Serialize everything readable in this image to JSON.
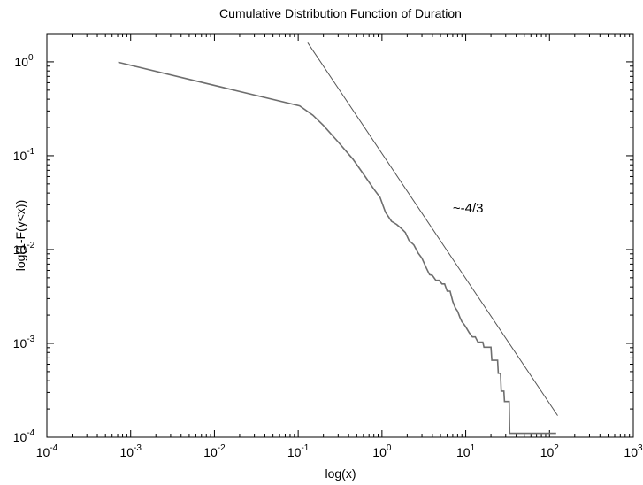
{
  "chart_data": {
    "type": "line",
    "title": "Cumulative Distribution Function of  Duration",
    "xlabel": "log(x)",
    "ylabel": "log(1-F(y<x))",
    "x_scale": "log",
    "y_scale": "log",
    "xlim": [
      0.0001,
      1000
    ],
    "ylim": [
      0.0001,
      2
    ],
    "grid": false,
    "x_ticks": [
      {
        "base": "10",
        "exp": "-4",
        "value": 0.0001
      },
      {
        "base": "10",
        "exp": "-3",
        "value": 0.001
      },
      {
        "base": "10",
        "exp": "-2",
        "value": 0.01
      },
      {
        "base": "10",
        "exp": "-1",
        "value": 0.1
      },
      {
        "base": "10",
        "exp": "0",
        "value": 1
      },
      {
        "base": "10",
        "exp": "1",
        "value": 10
      },
      {
        "base": "10",
        "exp": "2",
        "value": 100
      },
      {
        "base": "10",
        "exp": "3",
        "value": 1000
      }
    ],
    "y_ticks": [
      {
        "base": "10",
        "exp": "-4",
        "value": 0.0001
      },
      {
        "base": "10",
        "exp": "-3",
        "value": 0.001
      },
      {
        "base": "10",
        "exp": "-2",
        "value": 0.01
      },
      {
        "base": "10",
        "exp": "-1",
        "value": 0.1
      },
      {
        "base": "10",
        "exp": "0",
        "value": 1
      }
    ],
    "series": [
      {
        "color": "#6e6e6e",
        "points": [
          [
            0.00071,
            0.99
          ],
          [
            0.104,
            0.34
          ],
          [
            0.15,
            0.27
          ],
          [
            0.2,
            0.21
          ],
          [
            0.3,
            0.14
          ],
          [
            0.45,
            0.092
          ],
          [
            0.6,
            0.064
          ],
          [
            0.8,
            0.044
          ],
          [
            0.95,
            0.036
          ],
          [
            1.1,
            0.025
          ],
          [
            1.3,
            0.02
          ],
          [
            1.5,
            0.0185
          ],
          [
            1.7,
            0.0168
          ],
          [
            1.9,
            0.0152
          ],
          [
            2.1,
            0.0125
          ],
          [
            2.4,
            0.0112
          ],
          [
            2.7,
            0.0092
          ],
          [
            3.0,
            0.0081
          ],
          [
            3.4,
            0.0063
          ],
          [
            3.7,
            0.0054
          ],
          [
            4.0,
            0.0053
          ],
          [
            4.4,
            0.0047
          ],
          [
            4.8,
            0.0047
          ],
          [
            5.2,
            0.0043
          ],
          [
            5.6,
            0.0043
          ],
          [
            6.0,
            0.0036
          ],
          [
            6.5,
            0.0036
          ],
          [
            7.0,
            0.0028
          ],
          [
            7.5,
            0.0024
          ],
          [
            8.0,
            0.0022
          ],
          [
            8.5,
            0.0019
          ],
          [
            9.0,
            0.0017
          ],
          [
            9.5,
            0.0016
          ],
          [
            10.0,
            0.0015
          ],
          [
            11,
            0.0013
          ],
          [
            12,
            0.00117
          ],
          [
            13,
            0.00117
          ],
          [
            14,
            0.00103
          ],
          [
            16,
            0.00103
          ],
          [
            16.5,
            0.00091
          ],
          [
            20,
            0.00091
          ],
          [
            20.5,
            0.00066
          ],
          [
            24,
            0.00066
          ],
          [
            24.5,
            0.00048
          ],
          [
            26,
            0.00048
          ],
          [
            26.5,
            0.00031
          ],
          [
            28.5,
            0.00031
          ],
          [
            29,
            0.00024
          ],
          [
            33,
            0.00024
          ],
          [
            33.5,
            0.00011
          ],
          [
            120,
            0.00011
          ]
        ]
      },
      {
        "color": "#555555",
        "points": [
          [
            0.13,
            1.6
          ],
          [
            125,
            0.00017
          ]
        ]
      }
    ],
    "annotations": [
      {
        "text": "~-4/3",
        "x": 7,
        "y": 0.025
      }
    ]
  }
}
